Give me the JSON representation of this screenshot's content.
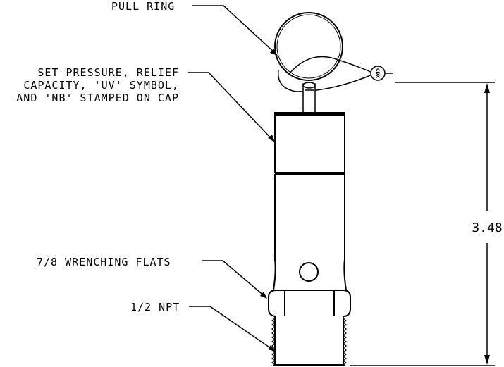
{
  "callouts": {
    "pull_ring": "PULL RING",
    "cap_line1": "SET PRESSURE, RELIEF",
    "cap_line2": "CAPACITY, 'UV' SYMBOL,",
    "cap_line3": "AND 'NB' STAMPED ON CAP",
    "wrench": "7/8 WRENCHING FLATS",
    "npt": "1/2 NPT"
  },
  "dimension": {
    "height": "3.48"
  },
  "tag": {
    "text": "CDX"
  }
}
